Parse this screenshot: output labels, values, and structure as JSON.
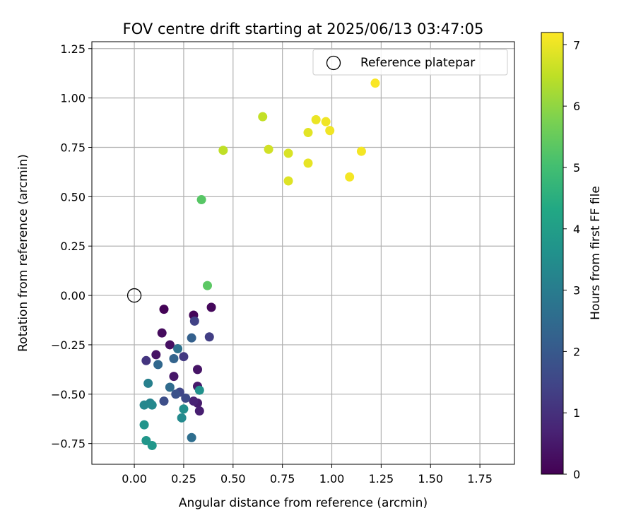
{
  "chart_data": {
    "type": "scatter",
    "title": "FOV centre drift starting at 2025/06/13 03:47:05",
    "xlabel": "Angular distance from reference (arcmin)",
    "ylabel": "Rotation from reference (arcmin)",
    "xlim": [
      -0.215,
      1.925
    ],
    "ylim": [
      -0.855,
      1.285
    ],
    "x_ticks": [
      "0.00",
      "0.25",
      "0.50",
      "0.75",
      "1.00",
      "1.25",
      "1.50",
      "1.75"
    ],
    "y_ticks": [
      "1.25",
      "1.00",
      "0.75",
      "0.50",
      "0.25",
      "0.00",
      "−0.25",
      "−0.50",
      "−0.75"
    ],
    "grid": true,
    "legend": {
      "position": "top-right",
      "entries": [
        "Reference platepar"
      ]
    },
    "colorbar": {
      "label": "Hours from first FF file",
      "colormap": "viridis",
      "range": [
        0,
        7.2
      ],
      "ticks": [
        "0",
        "1",
        "2",
        "3",
        "4",
        "5",
        "6",
        "7"
      ]
    },
    "reference_point": {
      "x": 0.0,
      "y": 0.0,
      "label": "Reference platepar"
    },
    "points": [
      {
        "x": 0.15,
        "y": -0.07,
        "c": 0.05
      },
      {
        "x": 0.3,
        "y": -0.1,
        "c": 0.1
      },
      {
        "x": 0.39,
        "y": -0.06,
        "c": 0.15
      },
      {
        "x": 0.14,
        "y": -0.19,
        "c": 0.2
      },
      {
        "x": 0.18,
        "y": -0.25,
        "c": 0.3
      },
      {
        "x": 0.11,
        "y": -0.3,
        "c": 0.35
      },
      {
        "x": 0.32,
        "y": -0.375,
        "c": 0.4
      },
      {
        "x": 0.2,
        "y": -0.41,
        "c": 0.45
      },
      {
        "x": 0.32,
        "y": -0.46,
        "c": 0.5
      },
      {
        "x": 0.32,
        "y": -0.545,
        "c": 0.55
      },
      {
        "x": 0.33,
        "y": -0.585,
        "c": 0.6
      },
      {
        "x": 0.3,
        "y": -0.535,
        "c": 0.7
      },
      {
        "x": 0.06,
        "y": -0.33,
        "c": 1.1
      },
      {
        "x": 0.25,
        "y": -0.31,
        "c": 1.2
      },
      {
        "x": 0.38,
        "y": -0.21,
        "c": 1.3
      },
      {
        "x": 0.305,
        "y": -0.13,
        "c": 1.4
      },
      {
        "x": 0.23,
        "y": -0.49,
        "c": 1.5
      },
      {
        "x": 0.26,
        "y": -0.52,
        "c": 1.6
      },
      {
        "x": 0.15,
        "y": -0.535,
        "c": 1.7
      },
      {
        "x": 0.21,
        "y": -0.5,
        "c": 1.8
      },
      {
        "x": 0.29,
        "y": -0.215,
        "c": 2.2
      },
      {
        "x": 0.2,
        "y": -0.32,
        "c": 2.3
      },
      {
        "x": 0.12,
        "y": -0.35,
        "c": 2.4
      },
      {
        "x": 0.18,
        "y": -0.465,
        "c": 2.5
      },
      {
        "x": 0.29,
        "y": -0.72,
        "c": 2.6
      },
      {
        "x": 0.22,
        "y": -0.27,
        "c": 2.7
      },
      {
        "x": 0.07,
        "y": -0.445,
        "c": 3.1
      },
      {
        "x": 0.08,
        "y": -0.545,
        "c": 3.2
      },
      {
        "x": 0.05,
        "y": -0.555,
        "c": 3.3
      },
      {
        "x": 0.09,
        "y": -0.555,
        "c": 3.35
      },
      {
        "x": 0.24,
        "y": -0.62,
        "c": 3.4
      },
      {
        "x": 0.25,
        "y": -0.575,
        "c": 3.5
      },
      {
        "x": 0.33,
        "y": -0.48,
        "c": 3.6
      },
      {
        "x": 0.05,
        "y": -0.655,
        "c": 3.7
      },
      {
        "x": 0.06,
        "y": -0.735,
        "c": 3.75
      },
      {
        "x": 0.09,
        "y": -0.76,
        "c": 3.8
      },
      {
        "x": 0.34,
        "y": 0.485,
        "c": 5.3
      },
      {
        "x": 0.37,
        "y": 0.05,
        "c": 5.35
      },
      {
        "x": 0.45,
        "y": 0.735,
        "c": 6.5
      },
      {
        "x": 0.65,
        "y": 0.905,
        "c": 6.55
      },
      {
        "x": 0.68,
        "y": 0.74,
        "c": 6.7
      },
      {
        "x": 0.78,
        "y": 0.72,
        "c": 6.8
      },
      {
        "x": 0.78,
        "y": 0.58,
        "c": 6.85
      },
      {
        "x": 0.88,
        "y": 0.825,
        "c": 6.9
      },
      {
        "x": 0.88,
        "y": 0.67,
        "c": 6.95
      },
      {
        "x": 0.92,
        "y": 0.89,
        "c": 7.0
      },
      {
        "x": 0.97,
        "y": 0.88,
        "c": 7.05
      },
      {
        "x": 0.99,
        "y": 0.835,
        "c": 7.05
      },
      {
        "x": 1.09,
        "y": 0.6,
        "c": 7.1
      },
      {
        "x": 1.15,
        "y": 0.73,
        "c": 7.1
      },
      {
        "x": 1.22,
        "y": 1.075,
        "c": 7.15
      }
    ]
  }
}
